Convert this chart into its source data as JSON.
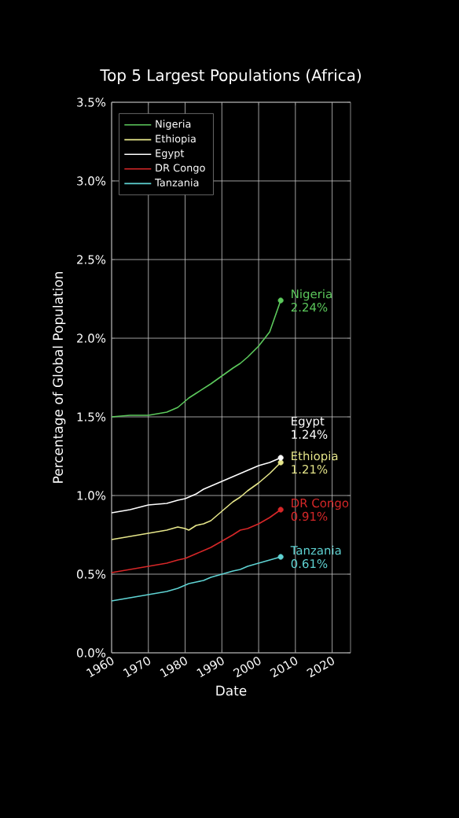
{
  "chart_data": {
    "type": "line",
    "title": "Top 5 Largest Populations (Africa)",
    "xlabel": "Date",
    "ylabel": "Percentage of Global Population",
    "xlim": [
      1960,
      2025
    ],
    "xticks": [
      1960,
      1970,
      1980,
      1990,
      2000,
      2010,
      2020
    ],
    "ylim": [
      0,
      3.5
    ],
    "yticks": [
      {
        "value": 0,
        "label": "0.0%"
      },
      {
        "value": 0.5,
        "label": "0.5%"
      },
      {
        "value": 1,
        "label": "1.0%"
      },
      {
        "value": 1.5,
        "label": "1.5%"
      },
      {
        "value": 2,
        "label": "2.0%"
      },
      {
        "value": 2.5,
        "label": "2.5%"
      },
      {
        "value": 3,
        "label": "3.0%"
      },
      {
        "value": 3.5,
        "label": "3.5%"
      }
    ],
    "grid": true,
    "legend": "top left",
    "line_style": "solid",
    "x": [
      1960,
      1965,
      1970,
      1975,
      1978,
      1980,
      1981,
      1983,
      1985,
      1987,
      1990,
      1993,
      1995,
      1997,
      2000,
      2003,
      2006
    ],
    "series": [
      {
        "name": "Nigeria",
        "color": "#5cc95c",
        "values": [
          1.5,
          1.51,
          1.51,
          1.53,
          1.56,
          1.6,
          1.62,
          1.65,
          1.68,
          1.71,
          1.76,
          1.81,
          1.84,
          1.88,
          1.95,
          2.04,
          2.24
        ],
        "value_labels": [
          null,
          null,
          null,
          null,
          null,
          null,
          null,
          null,
          null,
          null,
          null,
          null,
          null,
          null,
          null,
          null,
          "2.24%"
        ]
      },
      {
        "name": "Ethiopia",
        "color": "#e6e68a",
        "values": [
          0.72,
          0.74,
          0.76,
          0.78,
          0.8,
          0.79,
          0.78,
          0.81,
          0.82,
          0.84,
          0.9,
          0.96,
          0.99,
          1.03,
          1.08,
          1.14,
          1.21
        ],
        "value_labels": [
          null,
          null,
          null,
          null,
          null,
          null,
          null,
          null,
          null,
          null,
          null,
          null,
          null,
          null,
          null,
          null,
          "1.21%"
        ]
      },
      {
        "name": "Egypt",
        "color": "#ffffff",
        "values": [
          0.89,
          0.91,
          0.94,
          0.95,
          0.97,
          0.98,
          0.99,
          1.01,
          1.04,
          1.06,
          1.09,
          1.12,
          1.14,
          1.16,
          1.19,
          1.21,
          1.24
        ],
        "value_labels": [
          null,
          null,
          null,
          null,
          null,
          null,
          null,
          null,
          null,
          null,
          null,
          null,
          null,
          null,
          null,
          null,
          "1.24%"
        ]
      },
      {
        "name": "DR Congo",
        "color": "#d62728",
        "values": [
          0.51,
          0.53,
          0.55,
          0.57,
          0.59,
          0.6,
          0.61,
          0.63,
          0.65,
          0.67,
          0.71,
          0.75,
          0.78,
          0.79,
          0.82,
          0.86,
          0.91
        ],
        "value_labels": [
          null,
          null,
          null,
          null,
          null,
          null,
          null,
          null,
          null,
          null,
          null,
          null,
          null,
          null,
          null,
          null,
          "0.91%"
        ]
      },
      {
        "name": "Tanzania",
        "color": "#5fd3d3",
        "values": [
          0.33,
          0.35,
          0.37,
          0.39,
          0.41,
          0.43,
          0.44,
          0.45,
          0.46,
          0.48,
          0.5,
          0.52,
          0.53,
          0.55,
          0.57,
          0.59,
          0.61
        ],
        "value_labels": [
          null,
          null,
          null,
          null,
          null,
          null,
          null,
          null,
          null,
          null,
          null,
          null,
          null,
          null,
          null,
          null,
          "0.61%"
        ]
      }
    ]
  }
}
